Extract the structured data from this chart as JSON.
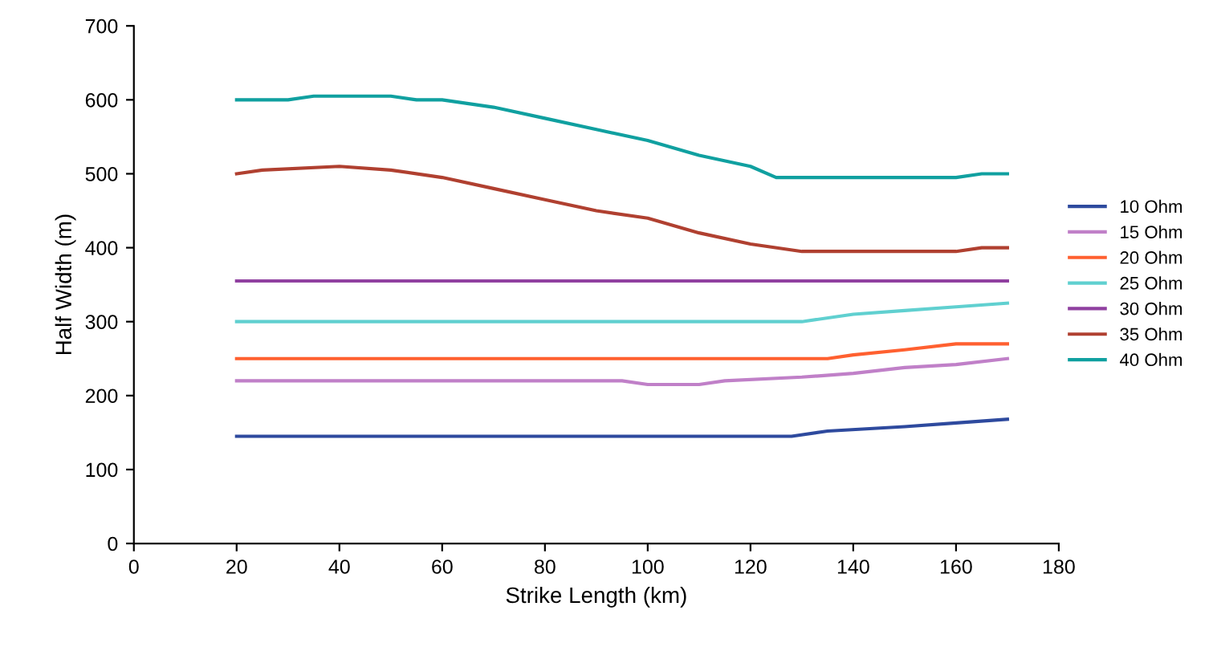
{
  "chart_data": {
    "type": "line",
    "xlabel": "Strike Length (km)",
    "ylabel": "Half Width (m)",
    "xlim": [
      0,
      180
    ],
    "xticks": [
      0,
      20,
      40,
      60,
      80,
      100,
      120,
      140,
      160,
      180
    ],
    "ylim": [
      0,
      700
    ],
    "yticks": [
      0,
      100,
      200,
      300,
      400,
      500,
      600,
      700
    ],
    "grid": false,
    "legend": "right",
    "marker": "none",
    "line_style": "solid",
    "series": [
      {
        "name": "10 Ohm",
        "color": "#2e4a9e",
        "x": [
          20,
          128,
          135,
          150,
          160,
          170
        ],
        "values": [
          145,
          145,
          152,
          158,
          163,
          168
        ]
      },
      {
        "name": "15 Ohm",
        "color": "#c080c8",
        "x": [
          20,
          95,
          100,
          110,
          115,
          130,
          140,
          150,
          160,
          170
        ],
        "values": [
          220,
          220,
          215,
          215,
          220,
          225,
          230,
          238,
          242,
          250
        ]
      },
      {
        "name": "20 Ohm",
        "color": "#ff6030",
        "x": [
          20,
          135,
          140,
          150,
          160,
          170
        ],
        "values": [
          250,
          250,
          255,
          262,
          270,
          270
        ]
      },
      {
        "name": "25 Ohm",
        "color": "#60d0d0",
        "x": [
          20,
          130,
          140,
          150,
          160,
          170
        ],
        "values": [
          300,
          300,
          310,
          315,
          320,
          325
        ]
      },
      {
        "name": "30 Ohm",
        "color": "#9040a0",
        "x": [
          20,
          170
        ],
        "values": [
          355,
          355
        ]
      },
      {
        "name": "35 Ohm",
        "color": "#b04030",
        "x": [
          20,
          25,
          40,
          50,
          60,
          70,
          80,
          90,
          100,
          110,
          120,
          130,
          160,
          165,
          170
        ],
        "values": [
          500,
          505,
          510,
          505,
          495,
          480,
          465,
          450,
          440,
          420,
          405,
          395,
          395,
          400,
          400
        ]
      },
      {
        "name": "40 Ohm",
        "color": "#10a0a0",
        "x": [
          20,
          30,
          35,
          50,
          55,
          60,
          70,
          80,
          90,
          100,
          110,
          120,
          125,
          160,
          165,
          170
        ],
        "values": [
          600,
          600,
          605,
          605,
          600,
          600,
          590,
          575,
          560,
          545,
          525,
          510,
          495,
          495,
          500,
          500
        ]
      }
    ]
  }
}
